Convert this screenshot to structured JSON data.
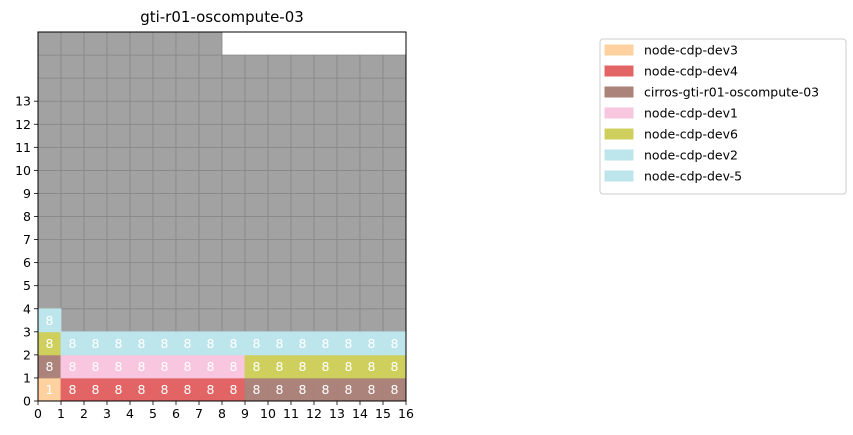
{
  "chart_data": {
    "type": "heatmap",
    "title": "gti-r01-oscompute-03",
    "xlim": [
      0,
      16
    ],
    "ylim": [
      0,
      16
    ],
    "x_ticks": [
      0,
      1,
      2,
      3,
      4,
      5,
      6,
      7,
      8,
      9,
      10,
      11,
      12,
      13,
      14,
      15,
      16
    ],
    "y_ticks": [
      0,
      1,
      2,
      3,
      4,
      5,
      6,
      7,
      8,
      9,
      10,
      11,
      12,
      13
    ],
    "legend": {
      "placement": "right",
      "entries": [
        {
          "name": "node-cdp-dev3",
          "color": "#ffd19e"
        },
        {
          "name": "node-cdp-dev4",
          "color": "#e26464"
        },
        {
          "name": "cirros-gti-r01-oscompute-03",
          "color": "#ab837a"
        },
        {
          "name": "node-cdp-dev1",
          "color": "#f8c6df"
        },
        {
          "name": "node-cdp-dev6",
          "color": "#cfcf5e"
        },
        {
          "name": "node-cdp-dev2",
          "color": "#bde5ec"
        },
        {
          "name": "node-cdp-dev-5",
          "color": "#bde5ec"
        }
      ]
    },
    "cells": [
      {
        "x": 0,
        "y": 0,
        "series": "node-cdp-dev3",
        "label": "1"
      },
      {
        "x": 1,
        "y": 0,
        "series": "node-cdp-dev4",
        "label": "8"
      },
      {
        "x": 2,
        "y": 0,
        "series": "node-cdp-dev4",
        "label": "8"
      },
      {
        "x": 3,
        "y": 0,
        "series": "node-cdp-dev4",
        "label": "8"
      },
      {
        "x": 4,
        "y": 0,
        "series": "node-cdp-dev4",
        "label": "8"
      },
      {
        "x": 5,
        "y": 0,
        "series": "node-cdp-dev4",
        "label": "8"
      },
      {
        "x": 6,
        "y": 0,
        "series": "node-cdp-dev4",
        "label": "8"
      },
      {
        "x": 7,
        "y": 0,
        "series": "node-cdp-dev4",
        "label": "8"
      },
      {
        "x": 8,
        "y": 0,
        "series": "node-cdp-dev4",
        "label": "8"
      },
      {
        "x": 9,
        "y": 0,
        "series": "cirros-gti-r01-oscompute-03",
        "label": "8"
      },
      {
        "x": 10,
        "y": 0,
        "series": "cirros-gti-r01-oscompute-03",
        "label": "8"
      },
      {
        "x": 11,
        "y": 0,
        "series": "cirros-gti-r01-oscompute-03",
        "label": "8"
      },
      {
        "x": 12,
        "y": 0,
        "series": "cirros-gti-r01-oscompute-03",
        "label": "8"
      },
      {
        "x": 13,
        "y": 0,
        "series": "cirros-gti-r01-oscompute-03",
        "label": "8"
      },
      {
        "x": 14,
        "y": 0,
        "series": "cirros-gti-r01-oscompute-03",
        "label": "8"
      },
      {
        "x": 15,
        "y": 0,
        "series": "cirros-gti-r01-oscompute-03",
        "label": "8"
      },
      {
        "x": 0,
        "y": 1,
        "series": "cirros-gti-r01-oscompute-03",
        "label": "8"
      },
      {
        "x": 1,
        "y": 1,
        "series": "node-cdp-dev1",
        "label": "8"
      },
      {
        "x": 2,
        "y": 1,
        "series": "node-cdp-dev1",
        "label": "8"
      },
      {
        "x": 3,
        "y": 1,
        "series": "node-cdp-dev1",
        "label": "8"
      },
      {
        "x": 4,
        "y": 1,
        "series": "node-cdp-dev1",
        "label": "8"
      },
      {
        "x": 5,
        "y": 1,
        "series": "node-cdp-dev1",
        "label": "8"
      },
      {
        "x": 6,
        "y": 1,
        "series": "node-cdp-dev1",
        "label": "8"
      },
      {
        "x": 7,
        "y": 1,
        "series": "node-cdp-dev1",
        "label": "8"
      },
      {
        "x": 8,
        "y": 1,
        "series": "node-cdp-dev1",
        "label": "8"
      },
      {
        "x": 9,
        "y": 1,
        "series": "node-cdp-dev6",
        "label": "8"
      },
      {
        "x": 10,
        "y": 1,
        "series": "node-cdp-dev6",
        "label": "8"
      },
      {
        "x": 11,
        "y": 1,
        "series": "node-cdp-dev6",
        "label": "8"
      },
      {
        "x": 12,
        "y": 1,
        "series": "node-cdp-dev6",
        "label": "8"
      },
      {
        "x": 13,
        "y": 1,
        "series": "node-cdp-dev6",
        "label": "8"
      },
      {
        "x": 14,
        "y": 1,
        "series": "node-cdp-dev6",
        "label": "8"
      },
      {
        "x": 15,
        "y": 1,
        "series": "node-cdp-dev6",
        "label": "8"
      },
      {
        "x": 0,
        "y": 2,
        "series": "node-cdp-dev6",
        "label": "8"
      },
      {
        "x": 1,
        "y": 2,
        "series": "node-cdp-dev2",
        "label": "8"
      },
      {
        "x": 2,
        "y": 2,
        "series": "node-cdp-dev2",
        "label": "8"
      },
      {
        "x": 3,
        "y": 2,
        "series": "node-cdp-dev2",
        "label": "8"
      },
      {
        "x": 4,
        "y": 2,
        "series": "node-cdp-dev2",
        "label": "8"
      },
      {
        "x": 5,
        "y": 2,
        "series": "node-cdp-dev2",
        "label": "8"
      },
      {
        "x": 6,
        "y": 2,
        "series": "node-cdp-dev2",
        "label": "8"
      },
      {
        "x": 7,
        "y": 2,
        "series": "node-cdp-dev2",
        "label": "8"
      },
      {
        "x": 8,
        "y": 2,
        "series": "node-cdp-dev2",
        "label": "8"
      },
      {
        "x": 9,
        "y": 2,
        "series": "node-cdp-dev-5",
        "label": "8"
      },
      {
        "x": 10,
        "y": 2,
        "series": "node-cdp-dev-5",
        "label": "8"
      },
      {
        "x": 11,
        "y": 2,
        "series": "node-cdp-dev-5",
        "label": "8"
      },
      {
        "x": 12,
        "y": 2,
        "series": "node-cdp-dev-5",
        "label": "8"
      },
      {
        "x": 13,
        "y": 2,
        "series": "node-cdp-dev-5",
        "label": "8"
      },
      {
        "x": 14,
        "y": 2,
        "series": "node-cdp-dev-5",
        "label": "8"
      },
      {
        "x": 15,
        "y": 2,
        "series": "node-cdp-dev-5",
        "label": "8"
      },
      {
        "x": 0,
        "y": 3,
        "series": "node-cdp-dev-5",
        "label": "8"
      }
    ],
    "unused": {
      "color": "#a2a2a2",
      "columns": [
        {
          "x": 0,
          "from": 4,
          "to": 15
        },
        {
          "x": 1,
          "from": 3,
          "to": 15
        },
        {
          "x": 2,
          "from": 3,
          "to": 15
        },
        {
          "x": 3,
          "from": 3,
          "to": 15
        },
        {
          "x": 4,
          "from": 3,
          "to": 15
        },
        {
          "x": 5,
          "from": 3,
          "to": 15
        },
        {
          "x": 6,
          "from": 3,
          "to": 15
        },
        {
          "x": 7,
          "from": 3,
          "to": 15
        },
        {
          "x": 8,
          "from": 3,
          "to": 14
        },
        {
          "x": 9,
          "from": 3,
          "to": 14
        },
        {
          "x": 10,
          "from": 3,
          "to": 14
        },
        {
          "x": 11,
          "from": 3,
          "to": 14
        },
        {
          "x": 12,
          "from": 3,
          "to": 14
        },
        {
          "x": 13,
          "from": 3,
          "to": 14
        },
        {
          "x": 14,
          "from": 3,
          "to": 14
        },
        {
          "x": 15,
          "from": 3,
          "to": 14
        }
      ]
    }
  }
}
